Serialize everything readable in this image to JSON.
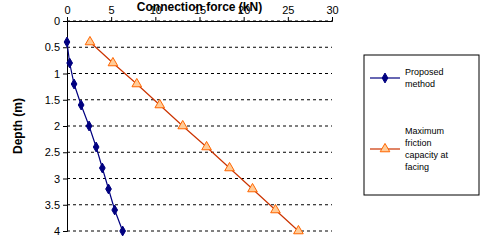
{
  "chart_data": {
    "type": "line",
    "x_label": "Connection force (kN)",
    "y_label": "Depth (m)",
    "xlim": [
      0,
      30
    ],
    "xticks": [
      0,
      5,
      10,
      15,
      20,
      25,
      30
    ],
    "ylim": [
      4,
      0
    ],
    "yticks": [
      0,
      0.5,
      1,
      1.5,
      2,
      2.5,
      3,
      3.5,
      4
    ],
    "grid": true,
    "legend": "right",
    "series": [
      {
        "name": "Proposed method",
        "color": "#000080",
        "marker": "diamond",
        "x": [
          0,
          0.3,
          0.8,
          1.6,
          2.5,
          3.3,
          4.0,
          4.7,
          5.4,
          6.3
        ],
        "values": [
          0.4,
          0.8,
          1.2,
          1.6,
          2.0,
          2.4,
          2.8,
          3.2,
          3.6,
          4.0
        ]
      },
      {
        "name": "Maximum friction capacity at facing",
        "color": "#cc3300",
        "marker": "triangle",
        "x": [
          2.6,
          5.2,
          7.9,
          10.5,
          13.1,
          15.8,
          18.4,
          21.0,
          23.6,
          26.2
        ],
        "values": [
          0.4,
          0.8,
          1.2,
          1.6,
          2.0,
          2.4,
          2.8,
          3.2,
          3.6,
          4.0
        ]
      }
    ]
  }
}
